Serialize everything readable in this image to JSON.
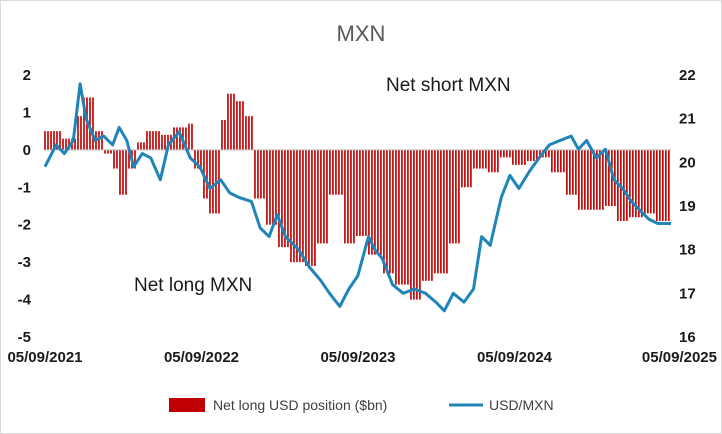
{
  "chart_data": {
    "type": "bar+line",
    "title": "MXN",
    "x_tick_labels": [
      "05/09/2021",
      "05/09/2022",
      "05/09/2023",
      "05/09/2024",
      "05/09/2025"
    ],
    "x_range": [
      "2021-09-05",
      "2025-09-05"
    ],
    "y_left": {
      "range": [
        -5,
        2
      ],
      "ticks": [
        -5,
        -4,
        -3,
        -2,
        -1,
        0,
        1,
        2
      ]
    },
    "y_right": {
      "range": [
        16,
        22
      ],
      "ticks": [
        16,
        17,
        18,
        19,
        20,
        21,
        22
      ]
    },
    "annotations": [
      "Net short MXN",
      "Net long MXN"
    ],
    "legend": {
      "position": "bottom"
    },
    "series": [
      {
        "name": "Net long USD position ($bn)",
        "type": "bar",
        "axis": "left",
        "color": "#c00000",
        "points": [
          [
            "2021-09-05",
            0.5
          ],
          [
            "2021-10-15",
            0.3
          ],
          [
            "2021-11-20",
            0.9
          ],
          [
            "2021-12-05",
            1.4
          ],
          [
            "2021-12-31",
            0.5
          ],
          [
            "2022-01-20",
            -0.1
          ],
          [
            "2022-02-10",
            -0.5
          ],
          [
            "2022-02-25",
            -1.2
          ],
          [
            "2022-03-15",
            -0.5
          ],
          [
            "2022-04-10",
            0.2
          ],
          [
            "2022-05-01",
            0.5
          ],
          [
            "2022-06-01",
            0.4
          ],
          [
            "2022-07-01",
            0.6
          ],
          [
            "2022-08-01",
            0.7
          ],
          [
            "2022-08-20",
            -0.5
          ],
          [
            "2022-09-05",
            -1.3
          ],
          [
            "2022-09-25",
            -1.7
          ],
          [
            "2022-10-20",
            0.8
          ],
          [
            "2022-11-01",
            1.5
          ],
          [
            "2022-11-25",
            1.3
          ],
          [
            "2022-12-15",
            0.9
          ],
          [
            "2023-01-05",
            -1.3
          ],
          [
            "2023-02-05",
            -2.0
          ],
          [
            "2023-03-05",
            -2.6
          ],
          [
            "2023-04-01",
            -3.0
          ],
          [
            "2023-05-01",
            -3.1
          ],
          [
            "2023-06-01",
            -2.5
          ],
          [
            "2023-07-01",
            -1.2
          ],
          [
            "2023-08-01",
            -2.5
          ],
          [
            "2023-09-01",
            -2.3
          ],
          [
            "2023-10-01",
            -2.8
          ],
          [
            "2023-11-01",
            -3.3
          ],
          [
            "2023-12-01",
            -3.6
          ],
          [
            "2024-01-01",
            -4.0
          ],
          [
            "2024-02-01",
            -3.5
          ],
          [
            "2024-03-01",
            -3.3
          ],
          [
            "2024-04-01",
            -2.5
          ],
          [
            "2024-05-01",
            -1.0
          ],
          [
            "2024-06-01",
            -0.5
          ],
          [
            "2024-07-01",
            -0.6
          ],
          [
            "2024-08-01",
            -0.2
          ],
          [
            "2024-09-01",
            -0.4
          ],
          [
            "2024-10-01",
            -0.3
          ],
          [
            "2024-11-01",
            -0.2
          ],
          [
            "2024-12-01",
            -0.6
          ],
          [
            "2025-01-01",
            -1.2
          ],
          [
            "2025-02-01",
            -1.6
          ],
          [
            "2025-03-01",
            -1.6
          ],
          [
            "2025-04-01",
            -1.5
          ],
          [
            "2025-05-01",
            -1.9
          ],
          [
            "2025-06-01",
            -1.8
          ],
          [
            "2025-07-01",
            -1.7
          ],
          [
            "2025-08-01",
            -1.9
          ],
          [
            "2025-09-05",
            -1.9
          ]
        ]
      },
      {
        "name": "USD/MXN",
        "type": "line",
        "axis": "right",
        "color": "#1f85b8",
        "points": [
          [
            "2021-09-05",
            19.9
          ],
          [
            "2021-10-01",
            20.4
          ],
          [
            "2021-10-20",
            20.2
          ],
          [
            "2021-11-10",
            20.5
          ],
          [
            "2021-11-26",
            21.8
          ],
          [
            "2021-12-10",
            21.0
          ],
          [
            "2021-12-31",
            20.5
          ],
          [
            "2022-01-20",
            20.6
          ],
          [
            "2022-02-10",
            20.4
          ],
          [
            "2022-02-25",
            20.8
          ],
          [
            "2022-03-15",
            20.5
          ],
          [
            "2022-03-31",
            19.9
          ],
          [
            "2022-04-20",
            20.2
          ],
          [
            "2022-05-10",
            20.1
          ],
          [
            "2022-06-01",
            19.6
          ],
          [
            "2022-06-20",
            20.4
          ],
          [
            "2022-07-15",
            20.7
          ],
          [
            "2022-08-10",
            20.1
          ],
          [
            "2022-09-01",
            19.9
          ],
          [
            "2022-09-25",
            19.4
          ],
          [
            "2022-10-20",
            19.6
          ],
          [
            "2022-11-10",
            19.3
          ],
          [
            "2022-12-01",
            19.2
          ],
          [
            "2022-12-31",
            19.1
          ],
          [
            "2023-01-20",
            18.5
          ],
          [
            "2023-02-10",
            18.3
          ],
          [
            "2023-03-01",
            18.8
          ],
          [
            "2023-03-20",
            18.3
          ],
          [
            "2023-04-20",
            18.0
          ],
          [
            "2023-05-15",
            17.6
          ],
          [
            "2023-06-10",
            17.3
          ],
          [
            "2023-07-01",
            17.0
          ],
          [
            "2023-07-25",
            16.7
          ],
          [
            "2023-08-15",
            17.1
          ],
          [
            "2023-09-05",
            17.4
          ],
          [
            "2023-09-30",
            18.3
          ],
          [
            "2023-10-15",
            18.0
          ],
          [
            "2023-11-01",
            17.8
          ],
          [
            "2023-11-25",
            17.2
          ],
          [
            "2023-12-20",
            17.0
          ],
          [
            "2024-01-15",
            17.1
          ],
          [
            "2024-02-10",
            17.0
          ],
          [
            "2024-03-05",
            16.8
          ],
          [
            "2024-03-25",
            16.6
          ],
          [
            "2024-04-15",
            17.0
          ],
          [
            "2024-05-10",
            16.8
          ],
          [
            "2024-06-01",
            17.1
          ],
          [
            "2024-06-20",
            18.3
          ],
          [
            "2024-07-10",
            18.1
          ],
          [
            "2024-08-05",
            19.2
          ],
          [
            "2024-08-25",
            19.7
          ],
          [
            "2024-09-15",
            19.4
          ],
          [
            "2024-10-10",
            19.8
          ],
          [
            "2024-11-01",
            20.1
          ],
          [
            "2024-11-25",
            20.4
          ],
          [
            "2024-12-20",
            20.5
          ],
          [
            "2025-01-15",
            20.6
          ],
          [
            "2025-02-01",
            20.3
          ],
          [
            "2025-02-20",
            20.5
          ],
          [
            "2025-03-15",
            20.1
          ],
          [
            "2025-04-05",
            20.3
          ],
          [
            "2025-04-25",
            19.6
          ],
          [
            "2025-05-15",
            19.4
          ],
          [
            "2025-06-05",
            19.1
          ],
          [
            "2025-06-25",
            18.9
          ],
          [
            "2025-07-15",
            18.7
          ],
          [
            "2025-08-05",
            18.6
          ],
          [
            "2025-08-20",
            18.6
          ],
          [
            "2025-09-05",
            18.6
          ]
        ]
      }
    ]
  }
}
